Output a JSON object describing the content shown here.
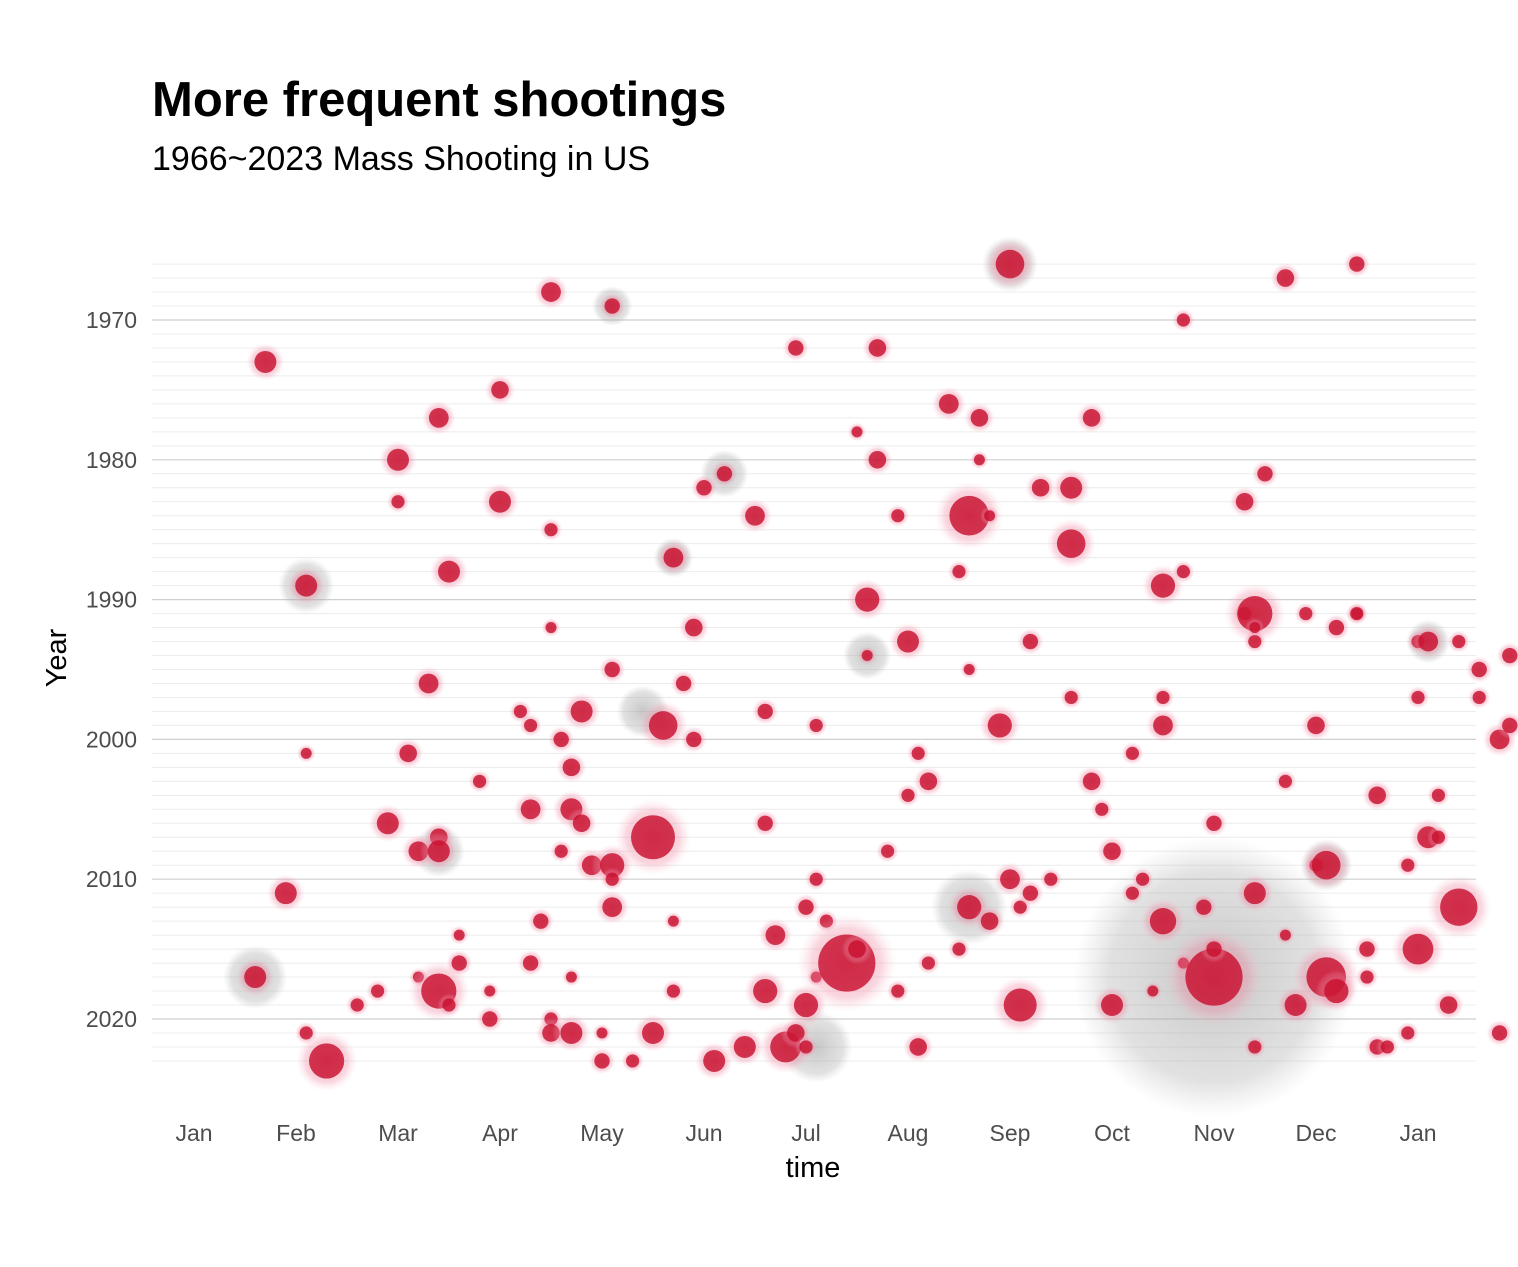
{
  "chart_data": {
    "type": "scatter",
    "title": "More frequent shootings",
    "subtitle": "1966~2023 Mass Shooting in US",
    "xlabel": "time",
    "ylabel": "Year",
    "x_tick_labels": [
      "Jan",
      "Feb",
      "Mar",
      "Apr",
      "May",
      "Jun",
      "Jul",
      "Aug",
      "Sep",
      "Oct",
      "Nov",
      "Dec",
      "Jan"
    ],
    "y_ticks": [
      1970,
      1980,
      1990,
      2000,
      2010,
      2020
    ],
    "y_range": [
      1966,
      2023
    ],
    "y_reversed": true,
    "grid": true,
    "legend": "none",
    "colors": {
      "point": "#c8102e",
      "halo": "#f4b6c6",
      "shadow": "#999999"
    },
    "point_fields": [
      "month",
      "year",
      "size"
    ],
    "points": [
      [
        1.7,
        1973,
        1
      ],
      [
        2.1,
        2001,
        0.5
      ],
      [
        1.9,
        2011,
        1
      ],
      [
        1.6,
        2017,
        1
      ],
      [
        2.1,
        2021,
        0.6
      ],
      [
        2.1,
        1989,
        1
      ],
      [
        2.6,
        2019,
        0.6
      ],
      [
        2.3,
        2023,
        1.6
      ],
      [
        2.8,
        2018,
        0.6
      ],
      [
        3.0,
        1980,
        1
      ],
      [
        3.0,
        1983,
        0.6
      ],
      [
        3.1,
        2001,
        0.8
      ],
      [
        2.9,
        2006,
        1
      ],
      [
        3.2,
        2008,
        0.9
      ],
      [
        3.2,
        2017,
        0.5
      ],
      [
        3.3,
        1996,
        0.9
      ],
      [
        3.4,
        2007,
        0.8
      ],
      [
        3.4,
        2008,
        1
      ],
      [
        3.4,
        2018,
        1.6
      ],
      [
        3.5,
        2019,
        0.6
      ],
      [
        3.4,
        1977,
        0.9
      ],
      [
        3.5,
        1988,
        1
      ],
      [
        3.6,
        2014,
        0.5
      ],
      [
        3.6,
        2016,
        0.7
      ],
      [
        4.0,
        1975,
        0.8
      ],
      [
        4.0,
        1983,
        1
      ],
      [
        3.8,
        2003,
        0.6
      ],
      [
        3.9,
        2018,
        0.5
      ],
      [
        3.9,
        2020,
        0.7
      ],
      [
        4.2,
        1998,
        0.6
      ],
      [
        4.3,
        1999,
        0.6
      ],
      [
        4.3,
        2005,
        0.9
      ],
      [
        4.3,
        2016,
        0.7
      ],
      [
        4.4,
        2013,
        0.7
      ],
      [
        4.5,
        1968,
        0.9
      ],
      [
        4.5,
        1985,
        0.6
      ],
      [
        4.5,
        1992,
        0.5
      ],
      [
        4.5,
        2020,
        0.6
      ],
      [
        4.5,
        2021,
        0.8
      ],
      [
        4.6,
        2000,
        0.7
      ],
      [
        4.6,
        2008,
        0.6
      ],
      [
        4.7,
        2002,
        0.8
      ],
      [
        4.7,
        2005,
        1
      ],
      [
        4.7,
        2017,
        0.5
      ],
      [
        4.7,
        2021,
        1
      ],
      [
        4.8,
        1998,
        1
      ],
      [
        4.8,
        2006,
        0.8
      ],
      [
        4.9,
        2009,
        0.9
      ],
      [
        5.0,
        2023,
        0.7
      ],
      [
        5.0,
        2021,
        0.5
      ],
      [
        5.1,
        1995,
        0.7
      ],
      [
        5.1,
        2009,
        1.1
      ],
      [
        5.1,
        2010,
        0.6
      ],
      [
        5.1,
        2012,
        0.9
      ],
      [
        5.1,
        1969,
        0.7
      ],
      [
        5.3,
        2023,
        0.6
      ],
      [
        5.5,
        2021,
        1
      ],
      [
        5.5,
        2007,
        2
      ],
      [
        5.6,
        1999,
        1.3
      ],
      [
        5.7,
        2013,
        0.5
      ],
      [
        5.7,
        2018,
        0.6
      ],
      [
        5.7,
        1987,
        0.9
      ],
      [
        5.8,
        1996,
        0.7
      ],
      [
        5.9,
        1992,
        0.8
      ],
      [
        5.9,
        2000,
        0.7
      ],
      [
        6.0,
        1982,
        0.7
      ],
      [
        6.2,
        1981,
        0.7
      ],
      [
        6.1,
        2023,
        1
      ],
      [
        6.4,
        2022,
        1
      ],
      [
        6.5,
        1984,
        0.9
      ],
      [
        6.6,
        1998,
        0.7
      ],
      [
        6.6,
        2006,
        0.7
      ],
      [
        6.7,
        2014,
        0.9
      ],
      [
        6.6,
        2018,
        1.1
      ],
      [
        6.8,
        2022,
        1.4
      ],
      [
        6.9,
        2021,
        0.8
      ],
      [
        6.9,
        1972,
        0.7
      ],
      [
        7.0,
        2012,
        0.7
      ],
      [
        7.0,
        2019,
        1.1
      ],
      [
        7.0,
        2022,
        0.6
      ],
      [
        7.1,
        1999,
        0.6
      ],
      [
        7.1,
        2010,
        0.6
      ],
      [
        7.1,
        2017,
        0.5
      ],
      [
        7.2,
        2013,
        0.6
      ],
      [
        7.4,
        2016,
        2.6
      ],
      [
        7.5,
        2015,
        0.8
      ],
      [
        7.5,
        1978,
        0.5
      ],
      [
        7.6,
        1990,
        1.1
      ],
      [
        7.6,
        1994,
        0.5
      ],
      [
        7.7,
        1972,
        0.8
      ],
      [
        7.7,
        1980,
        0.8
      ],
      [
        7.8,
        2008,
        0.6
      ],
      [
        7.9,
        2018,
        0.6
      ],
      [
        7.9,
        1984,
        0.6
      ],
      [
        8.0,
        1993,
        1
      ],
      [
        8.0,
        2004,
        0.6
      ],
      [
        8.1,
        2001,
        0.6
      ],
      [
        8.1,
        2022,
        0.8
      ],
      [
        8.2,
        2003,
        0.8
      ],
      [
        8.2,
        2016,
        0.6
      ],
      [
        8.4,
        1976,
        0.9
      ],
      [
        8.5,
        2015,
        0.6
      ],
      [
        8.5,
        1988,
        0.6
      ],
      [
        8.6,
        1984,
        1.8
      ],
      [
        8.6,
        1995,
        0.5
      ],
      [
        8.6,
        2012,
        1.1
      ],
      [
        8.7,
        1980,
        0.5
      ],
      [
        8.7,
        1977,
        0.8
      ],
      [
        8.8,
        1984,
        0.5
      ],
      [
        8.8,
        2013,
        0.8
      ],
      [
        8.9,
        1999,
        1.1
      ],
      [
        9.0,
        1966,
        1.3
      ],
      [
        9.0,
        2010,
        0.9
      ],
      [
        9.1,
        2012,
        0.6
      ],
      [
        9.1,
        2019,
        1.5
      ],
      [
        9.2,
        2011,
        0.7
      ],
      [
        9.2,
        1993,
        0.7
      ],
      [
        9.3,
        1982,
        0.8
      ],
      [
        9.4,
        2010,
        0.6
      ],
      [
        9.6,
        1982,
        1
      ],
      [
        9.6,
        1997,
        0.6
      ],
      [
        9.6,
        1986,
        1.3
      ],
      [
        9.8,
        1977,
        0.8
      ],
      [
        9.8,
        2003,
        0.8
      ],
      [
        9.9,
        2005,
        0.6
      ],
      [
        10.0,
        2008,
        0.8
      ],
      [
        10.0,
        2019,
        1
      ],
      [
        10.2,
        2011,
        0.6
      ],
      [
        10.2,
        2001,
        0.6
      ],
      [
        10.3,
        2010,
        0.6
      ],
      [
        10.4,
        2018,
        0.5
      ],
      [
        10.5,
        1989,
        1.1
      ],
      [
        10.5,
        2013,
        1.2
      ],
      [
        10.5,
        1997,
        0.6
      ],
      [
        10.5,
        1999,
        0.9
      ],
      [
        10.7,
        1970,
        0.6
      ],
      [
        10.7,
        1988,
        0.6
      ],
      [
        10.7,
        2016,
        0.5
      ],
      [
        10.9,
        2012,
        0.7
      ],
      [
        11.0,
        2017,
        2.6
      ],
      [
        11.0,
        2015,
        0.7
      ],
      [
        11.0,
        2006,
        0.7
      ],
      [
        11.3,
        1983,
        0.8
      ],
      [
        11.3,
        1991,
        0.6
      ],
      [
        11.4,
        1991,
        1.6
      ],
      [
        11.4,
        1993,
        0.6
      ],
      [
        11.4,
        1992,
        0.5
      ],
      [
        11.5,
        1981,
        0.7
      ],
      [
        11.4,
        2011,
        1
      ],
      [
        11.4,
        2022,
        0.6
      ],
      [
        11.7,
        1967,
        0.8
      ],
      [
        11.7,
        2014,
        0.5
      ],
      [
        11.7,
        2003,
        0.6
      ],
      [
        11.8,
        2019,
        1
      ],
      [
        11.9,
        1991,
        0.6
      ],
      [
        12.0,
        1999,
        0.8
      ],
      [
        12.0,
        2009,
        0.6
      ],
      [
        12.1,
        2009,
        1.3
      ],
      [
        12.1,
        2017,
        1.8
      ],
      [
        12.2,
        2018,
        1.1
      ],
      [
        12.2,
        1992,
        0.7
      ],
      [
        12.4,
        1991,
        0.5
      ],
      [
        12.4,
        1966,
        0.7
      ],
      [
        12.4,
        1991,
        0.6
      ],
      [
        12.5,
        2017,
        0.6
      ],
      [
        12.5,
        2015,
        0.7
      ],
      [
        12.6,
        2022,
        0.7
      ],
      [
        12.6,
        2004,
        0.8
      ],
      [
        12.7,
        2022,
        0.6
      ],
      [
        12.9,
        2021,
        0.6
      ],
      [
        12.9,
        2009,
        0.6
      ],
      [
        13.0,
        1993,
        0.6
      ],
      [
        13.0,
        1997,
        0.6
      ],
      [
        13.0,
        2015,
        1.4
      ],
      [
        13.1,
        2007,
        1
      ],
      [
        13.1,
        1993,
        0.9
      ],
      [
        13.2,
        2004,
        0.6
      ],
      [
        13.2,
        2007,
        0.6
      ],
      [
        13.3,
        2019,
        0.8
      ],
      [
        13.4,
        1993,
        0.6
      ],
      [
        13.4,
        2012,
        1.7
      ],
      [
        13.6,
        1995,
        0.7
      ],
      [
        13.6,
        1997,
        0.6
      ],
      [
        13.8,
        2000,
        0.9
      ],
      [
        13.8,
        2021,
        0.7
      ],
      [
        13.9,
        1999,
        0.7
      ],
      [
        13.9,
        1994,
        0.7
      ]
    ],
    "grey_halo_points": [
      [
        11.0,
        2017,
        7
      ],
      [
        8.6,
        2012,
        1.9
      ],
      [
        7.1,
        2022,
        1.8
      ],
      [
        5.4,
        1998,
        1.3
      ],
      [
        3.4,
        2008,
        1.3
      ],
      [
        1.6,
        2017,
        1.6
      ],
      [
        2.1,
        1989,
        1.4
      ],
      [
        9.0,
        1966,
        1.4
      ],
      [
        7.6,
        1994,
        1.2
      ],
      [
        6.2,
        1981,
        1.2
      ],
      [
        12.1,
        2009,
        1.3
      ],
      [
        13.1,
        1993,
        1.1
      ],
      [
        5.1,
        1969,
        1
      ],
      [
        5.7,
        1987,
        1
      ]
    ]
  }
}
